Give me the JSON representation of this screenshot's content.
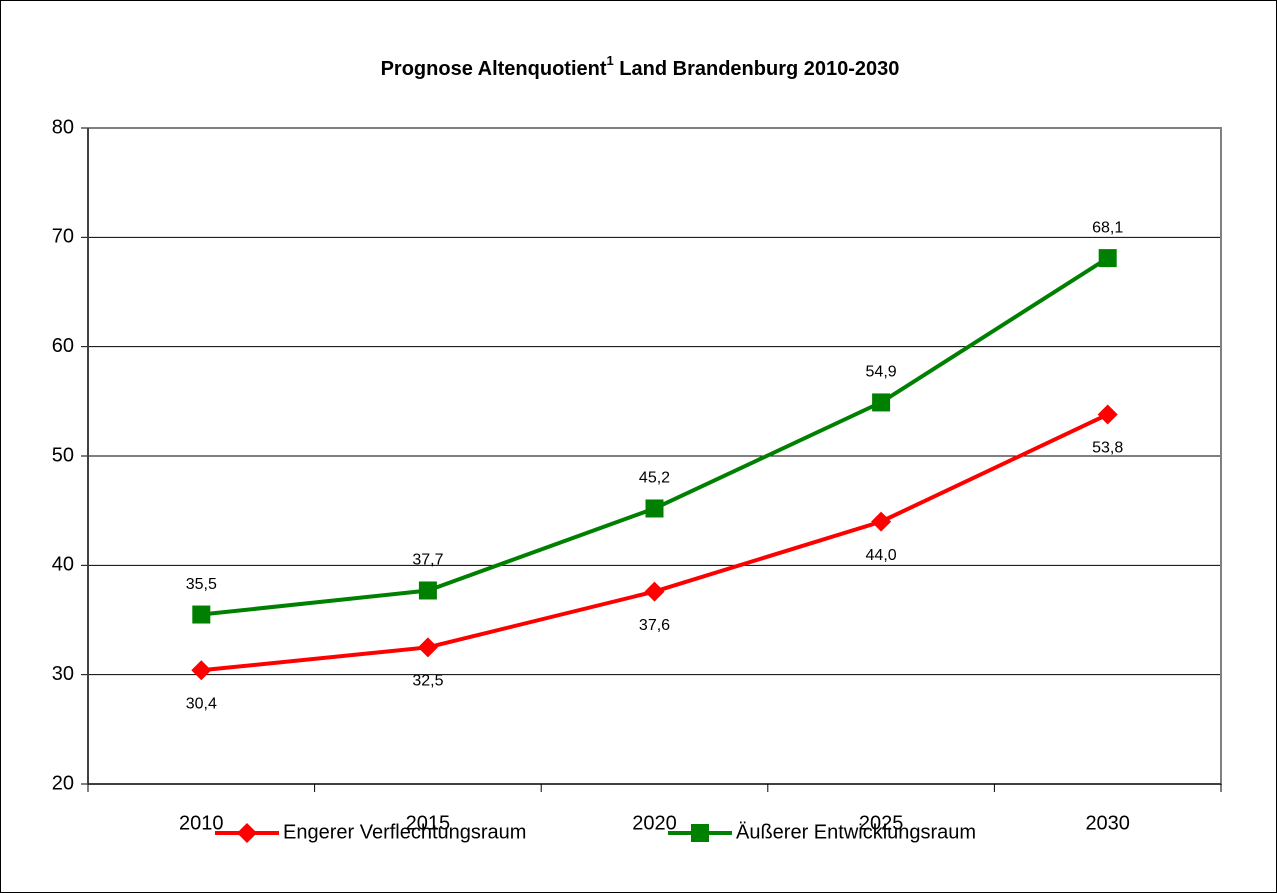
{
  "chart_data": {
    "type": "line",
    "title": [
      "Prognose Altenquotient",
      "1",
      " Land Brandenburg 2010-2030"
    ],
    "categories": [
      "2010",
      "2015",
      "2020",
      "2025",
      "2030"
    ],
    "series": [
      {
        "name": "Engerer Verflechtungsraum",
        "color": "#ff0000",
        "marker": "diamond",
        "values": [
          30.4,
          32.5,
          37.6,
          44.0,
          53.8
        ],
        "value_labels": [
          "30,4",
          "32,5",
          "37,6",
          "44,0",
          "53,8"
        ]
      },
      {
        "name": "Äußerer Entwicklungsraum",
        "color": "#008000",
        "marker": "square",
        "values": [
          35.5,
          37.7,
          45.2,
          54.9,
          68.1
        ],
        "value_labels": [
          "35,5",
          "37,7",
          "45,2",
          "54,9",
          "68,1"
        ]
      }
    ],
    "ylim": [
      20,
      80
    ],
    "yticks": [
      20,
      30,
      40,
      50,
      60,
      70,
      80
    ],
    "grid": true,
    "legend": "bottom"
  }
}
